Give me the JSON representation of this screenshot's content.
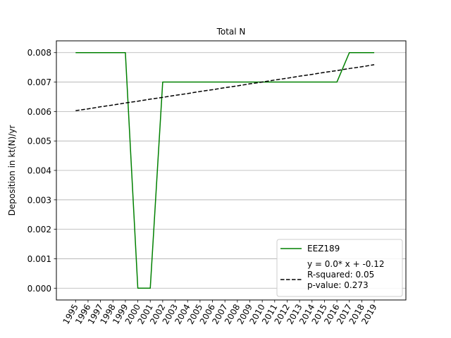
{
  "chart_data": {
    "type": "line",
    "title": "Total N",
    "xlabel": "",
    "ylabel": "Deposition in kt(N)/yr",
    "x": [
      "1995",
      "1996",
      "1997",
      "1998",
      "1999",
      "2000",
      "2001",
      "2002",
      "2003",
      "2004",
      "2005",
      "2006",
      "2007",
      "2008",
      "2009",
      "2010",
      "2011",
      "2012",
      "2013",
      "2014",
      "2015",
      "2016",
      "2017",
      "2018",
      "2019"
    ],
    "ylim": [
      -0.0004,
      0.0084
    ],
    "yticks": [
      "0.000",
      "0.001",
      "0.002",
      "0.003",
      "0.004",
      "0.005",
      "0.006",
      "0.007",
      "0.008"
    ],
    "ytick_values": [
      0,
      0.001,
      0.002,
      0.003,
      0.004,
      0.005,
      0.006,
      0.007,
      0.008
    ],
    "grid": "horizontal",
    "legend_position": "lower-right",
    "series": [
      {
        "name": "EEZ189",
        "color": "#008000",
        "style": "solid",
        "values": [
          0.008,
          0.008,
          0.008,
          0.008,
          0.008,
          0.0,
          0.0,
          0.007,
          0.007,
          0.007,
          0.007,
          0.007,
          0.007,
          0.007,
          0.007,
          0.007,
          0.007,
          0.007,
          0.007,
          0.007,
          0.007,
          0.007,
          0.008,
          0.008,
          0.008
        ]
      },
      {
        "name_lines": [
          "y = 0.0* x + -0.12",
          "R-squared: 0.05",
          "p-value: 0.273"
        ],
        "color": "#000000",
        "style": "dashed",
        "values": [
          0.00603,
          0.00609,
          0.00616,
          0.00622,
          0.00629,
          0.00635,
          0.00642,
          0.00648,
          0.00655,
          0.00661,
          0.00668,
          0.00674,
          0.00681,
          0.00687,
          0.00694,
          0.007,
          0.00707,
          0.00713,
          0.0072,
          0.00726,
          0.00733,
          0.00739,
          0.00746,
          0.00752,
          0.00759
        ]
      }
    ]
  }
}
